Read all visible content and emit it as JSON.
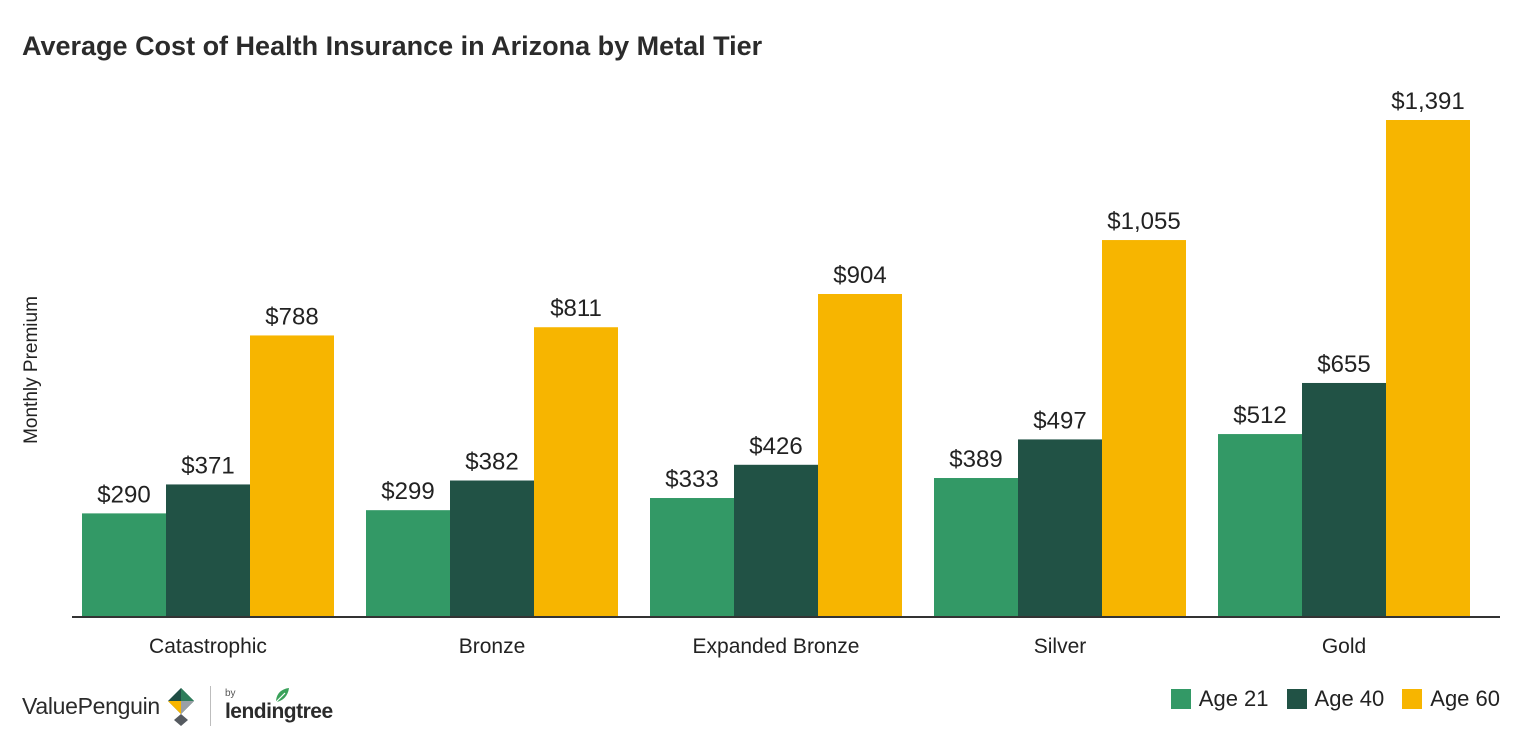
{
  "colors": {
    "age21": "#339966",
    "age40": "#215245",
    "age60": "#F7B500",
    "axis": "#333333",
    "text": "#222222"
  },
  "chart_data": {
    "type": "bar",
    "title": "Average Cost of Health Insurance in Arizona by Metal Tier",
    "xlabel": "",
    "ylabel": "Monthly Premium",
    "categories": [
      "Catastrophic",
      "Bronze",
      "Expanded Bronze",
      "Silver",
      "Gold"
    ],
    "series": [
      {
        "name": "Age 21",
        "values": [
          290,
          299,
          333,
          389,
          512
        ],
        "labels": [
          "$290",
          "$299",
          "$333",
          "$389",
          "$512"
        ],
        "color": "#339966"
      },
      {
        "name": "Age 40",
        "values": [
          371,
          382,
          426,
          497,
          655
        ],
        "labels": [
          "$371",
          "$382",
          "$426",
          "$497",
          "$655"
        ],
        "color": "#215245"
      },
      {
        "name": "Age 60",
        "values": [
          788,
          811,
          904,
          1055,
          1391
        ],
        "labels": [
          "$788",
          "$811",
          "$904",
          "$1,055",
          "$1,391"
        ],
        "color": "#F7B500"
      }
    ],
    "ylim": [
      0,
      1391
    ],
    "grid": false,
    "legend": "bottom-right"
  },
  "footer": {
    "brand_name": "ValuePenguin",
    "by_label": "by",
    "partner_name": "lendingtree",
    "logo_icon": "valuepenguin-logo-icon",
    "partner_icon": "lendingtree-leaf-icon"
  }
}
